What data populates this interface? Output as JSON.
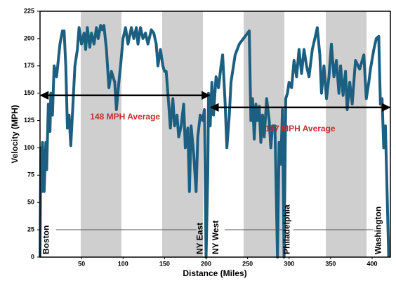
{
  "chart_data": {
    "type": "line",
    "xlabel": "Distance (Miles)",
    "ylabel": "Velocity (MPH)",
    "xlim": [
      0,
      422
    ],
    "ylim": [
      0,
      225
    ],
    "xticks": [
      50,
      100,
      150,
      200,
      250,
      300,
      350,
      400
    ],
    "yticks": [
      0,
      25,
      50,
      75,
      100,
      125,
      150,
      175,
      200,
      225
    ],
    "series": [
      {
        "color": "#1c5f80",
        "x": [
          0,
          1,
          2,
          3,
          5,
          7,
          8,
          10,
          12,
          13,
          15,
          17,
          20,
          24,
          27,
          29,
          31,
          33,
          35,
          37,
          39,
          42,
          45,
          47,
          50,
          53,
          55,
          57,
          60,
          62,
          65,
          68,
          70,
          73,
          75,
          77,
          80,
          83,
          86,
          90,
          92,
          95,
          97,
          100,
          103,
          106,
          110,
          113,
          116,
          118,
          121,
          124,
          127,
          130,
          134,
          137,
          140,
          142,
          145,
          148,
          150,
          152,
          155,
          157,
          160,
          162,
          165,
          167,
          170,
          173,
          175,
          178,
          180,
          182,
          185,
          188,
          190,
          193,
          196,
          198,
          200,
          202,
          203,
          205,
          207,
          209,
          212,
          215,
          218,
          220,
          223,
          225,
          228,
          230,
          235,
          240,
          245,
          250,
          252,
          254,
          256,
          258,
          260,
          262,
          264,
          266,
          268,
          270,
          273,
          276,
          278,
          280,
          283,
          286,
          288,
          290,
          292,
          294,
          296,
          298,
          300,
          303,
          306,
          309,
          312,
          315,
          318,
          321,
          324,
          328,
          331,
          334,
          337,
          339,
          342,
          345,
          348,
          351,
          354,
          357,
          360,
          362,
          365,
          368,
          370,
          373,
          376,
          380,
          385,
          390,
          393,
          396,
          398,
          402,
          405,
          408,
          410,
          412,
          414,
          416,
          418,
          420
        ],
        "values": [
          0,
          100,
          60,
          105,
          60,
          105,
          80,
          140,
          115,
          150,
          130,
          175,
          165,
          195,
          207,
          207,
          175,
          118,
          130,
          102,
          130,
          175,
          190,
          210,
          195,
          205,
          190,
          210,
          192,
          205,
          195,
          210,
          200,
          212,
          208,
          212,
          190,
          155,
          170,
          160,
          135,
          160,
          175,
          200,
          210,
          195,
          210,
          200,
          210,
          195,
          210,
          200,
          205,
          195,
          208,
          205,
          195,
          175,
          190,
          175,
          170,
          170,
          140,
          118,
          145,
          120,
          130,
          110,
          120,
          140,
          100,
          118,
          60,
          120,
          95,
          60,
          110,
          130,
          125,
          135,
          0,
          75,
          150,
          120,
          160,
          130,
          165,
          155,
          175,
          185,
          140,
          100,
          130,
          160,
          185,
          195,
          200,
          205,
          207,
          125,
          145,
          108,
          140,
          125,
          138,
          105,
          130,
          110,
          145,
          125,
          100,
          120,
          120,
          0,
          105,
          85,
          135,
          0,
          145,
          150,
          160,
          155,
          180,
          165,
          190,
          168,
          190,
          175,
          165,
          190,
          200,
          210,
          185,
          150,
          175,
          145,
          165,
          195,
          165,
          180,
          150,
          175,
          148,
          170,
          135,
          160,
          140,
          180,
          172,
          185,
          145,
          160,
          172,
          190,
          200,
          202,
          140,
          145,
          100,
          120,
          60,
          0
        ]
      }
    ],
    "annotations": [
      {
        "text": "148 MPH Average",
        "value": 148,
        "x": [
          0,
          205
        ]
      },
      {
        "text": "137 MPH Average",
        "value": 137,
        "x": [
          205,
          422
        ]
      }
    ],
    "stations": [
      {
        "name": "Boston",
        "x": 8
      },
      {
        "name": "NY East",
        "x": 193
      },
      {
        "name": "NY West",
        "x": 212
      },
      {
        "name": "Philadelphia",
        "x": 298
      },
      {
        "name": "Washington",
        "x": 408
      }
    ]
  }
}
